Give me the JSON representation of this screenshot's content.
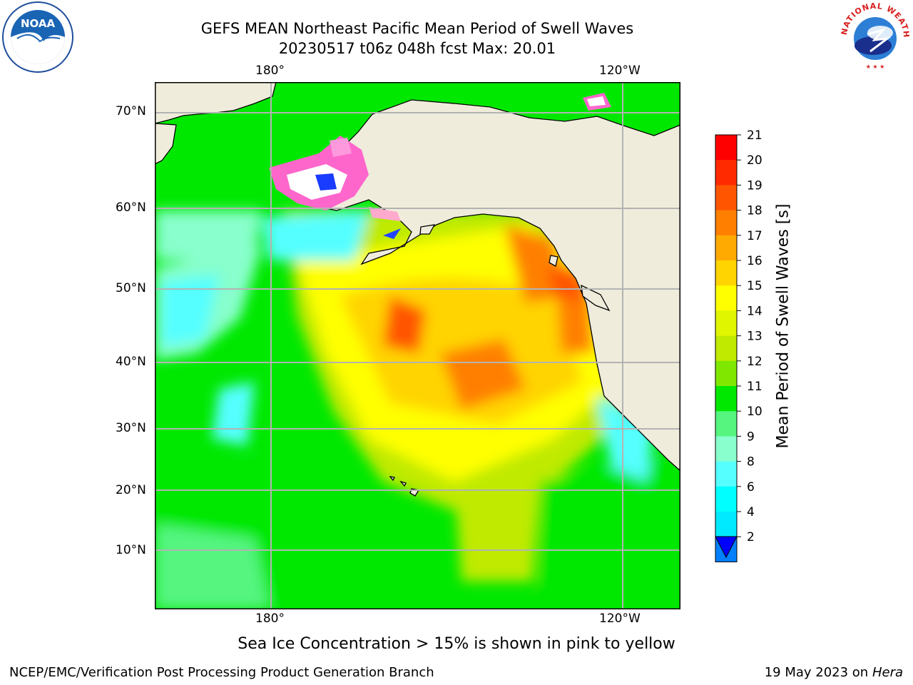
{
  "header": {
    "title_line1": "GEFS MEAN Northeast Pacific Mean Period of Swell Waves",
    "title_line2": "20230517 t06z 048h fcst   Max: 20.01"
  },
  "logos": {
    "left": "NOAA",
    "right": "NATIONAL WEATHER SERVICE"
  },
  "map": {
    "lon_labels_top": [
      "180°",
      "120°W"
    ],
    "lon_labels_bottom": [
      "180°",
      "120°W"
    ],
    "lat_labels": [
      "70°N",
      "60°N",
      "50°N",
      "40°N",
      "30°N",
      "20°N",
      "10°N"
    ],
    "land_color": "#efecdc",
    "grid_color": "#b3b3b3"
  },
  "colorbar": {
    "label": "Mean Period of Swell Waves [s]",
    "ticks": [
      "21",
      "20",
      "19",
      "18",
      "17",
      "16",
      "15",
      "14",
      "13",
      "12",
      "11",
      "10",
      "9",
      "8",
      "6",
      "4",
      "2"
    ],
    "colors_top_to_bottom": [
      "#ff0000",
      "#ff2a00",
      "#ff5500",
      "#ff8000",
      "#ffaa00",
      "#ffd400",
      "#ffff00",
      "#e0f500",
      "#c0ea00",
      "#80e800",
      "#00e800",
      "#55f580",
      "#88ffcc",
      "#55ffff",
      "#00ffff",
      "#00eaff",
      "#0080ff"
    ],
    "extend_color": "#0000ff"
  },
  "caption": "Sea Ice Concentration > 15% is shown in pink to yellow",
  "footer": {
    "left": "NCEP/EMC/Verification Post Processing Product Generation Branch",
    "right_date": "19 May 2023 on",
    "right_machine": "Hera"
  }
}
